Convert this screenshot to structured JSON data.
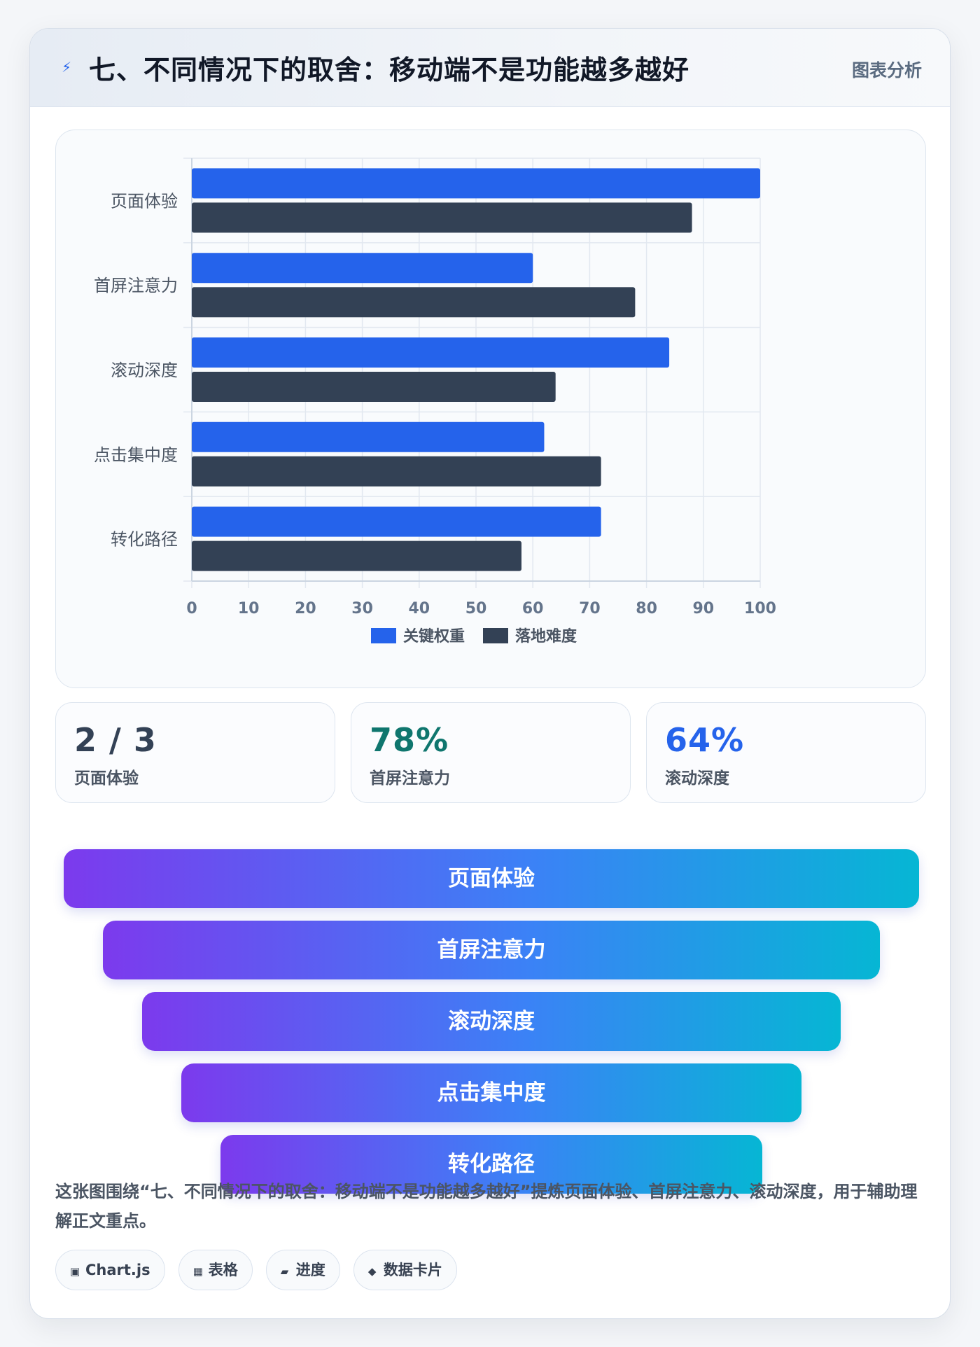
{
  "header": {
    "title": "七、不同情况下的取舍：移动端不是功能越多越好",
    "tag": "图表分析",
    "icon": "lightning-icon"
  },
  "chart_data": {
    "type": "bar",
    "orientation": "horizontal",
    "categories": [
      "页面体验",
      "首屏注意力",
      "滚动深度",
      "点击集中度",
      "转化路径"
    ],
    "series": [
      {
        "name": "关键权重",
        "values": [
          100,
          60,
          84,
          62,
          72
        ],
        "color": "#2563eb"
      },
      {
        "name": "落地难度",
        "values": [
          88,
          78,
          64,
          72,
          58
        ],
        "color": "#334155"
      }
    ],
    "xlim": [
      0,
      100
    ],
    "xticks": [
      0,
      10,
      20,
      30,
      40,
      50,
      60,
      70,
      80,
      90,
      100
    ],
    "grid": true,
    "legend": "bottom"
  },
  "stats": [
    {
      "value": "2 / 3",
      "label": "页面体验",
      "color": "#334155"
    },
    {
      "value": "78%",
      "label": "首屏注意力",
      "color": "#0f766e"
    },
    {
      "value": "64%",
      "label": "滚动深度",
      "color": "#2563eb"
    }
  ],
  "funnel": [
    "页面体验",
    "首屏注意力",
    "滚动深度",
    "点击集中度",
    "转化路径"
  ],
  "summary": "这张图围绕“七、不同情况下的取舍：移动端不是功能越多越好”提炼页面体验、首屏注意力、滚动深度，用于辅助理解正文重点。",
  "chips": [
    {
      "icon": "▣",
      "label": "Chart.js"
    },
    {
      "icon": "▦",
      "label": "表格"
    },
    {
      "icon": "▰",
      "label": "进度"
    },
    {
      "icon": "◆",
      "label": "数据卡片"
    }
  ]
}
